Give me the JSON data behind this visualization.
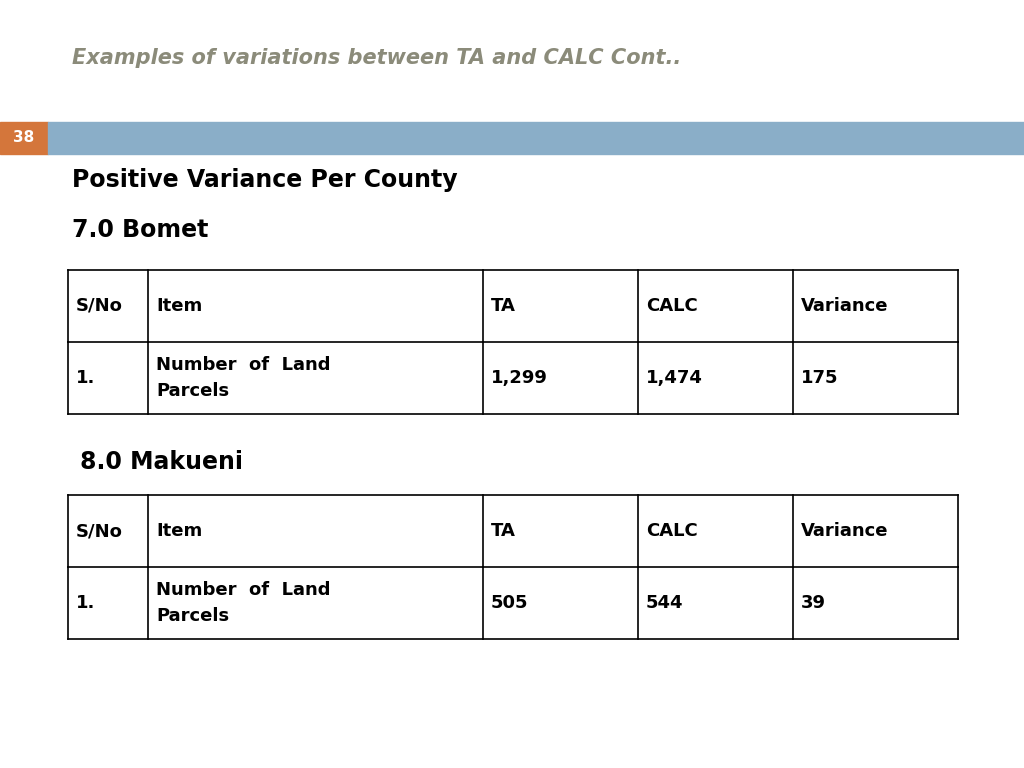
{
  "title": "Examples of variations between TA and CALC Cont..",
  "title_color": "#8B8B7A",
  "slide_number": "38",
  "slide_number_bg": "#D4763B",
  "header_bar_color": "#8AAEC8",
  "section_heading": "Positive Variance Per County",
  "table1_heading": "7.0 Bomet",
  "table2_heading": "8.0 Makueni",
  "table_headers": [
    "S/No",
    "Item",
    "TA",
    "CALC",
    "Variance"
  ],
  "table1_rows": [
    [
      "1.",
      "Number  of  Land\nParcels",
      "1,299",
      "1,474",
      "175"
    ]
  ],
  "table2_rows": [
    [
      "1.",
      "Number  of  Land\nParcels",
      "505",
      "544",
      "39"
    ]
  ],
  "bg_color": "#FFFFFF",
  "text_color": "#000000"
}
